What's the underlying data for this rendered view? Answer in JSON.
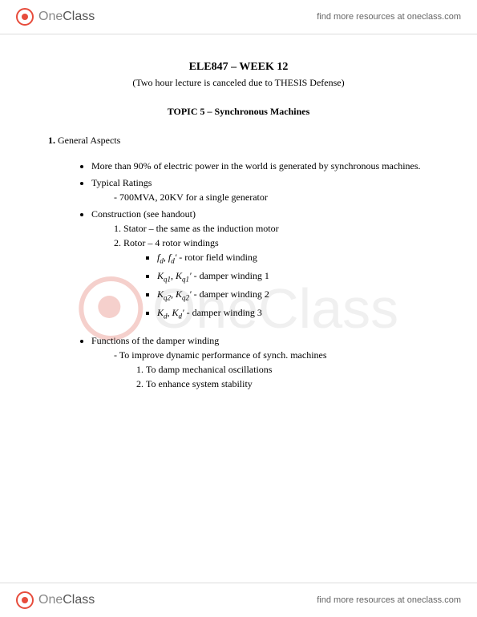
{
  "brand": {
    "name_one": "One",
    "name_class": "Class",
    "link_text": "find more resources at oneclass.com"
  },
  "doc": {
    "title": "ELE847 – WEEK 12",
    "subtitle": "(Two hour lecture is canceled due to THESIS Defense)",
    "topic": "TOPIC 5 – Synchronous Machines",
    "section1": "1. General Aspects",
    "b1": "More than 90% of electric power in the world is generated by synchronous machines.",
    "b2": "Typical Ratings",
    "b2_dash": "700MVA, 20KV for a single generator",
    "b3": "Construction (see handout)",
    "b3_n1": "Stator – the same as the induction motor",
    "b3_n2": "Rotor – 4 rotor windings",
    "wind1_lbl": " - rotor field winding",
    "wind2_lbl": " - damper winding 1",
    "wind3_lbl": " - damper winding 2",
    "wind4_lbl": " - damper winding 3",
    "b4": "Functions of the damper winding",
    "b4_dash": "To improve dynamic performance of synch. machines",
    "b4_n1": "To damp mechanical oscillations",
    "b4_n2": "To enhance system stability"
  }
}
